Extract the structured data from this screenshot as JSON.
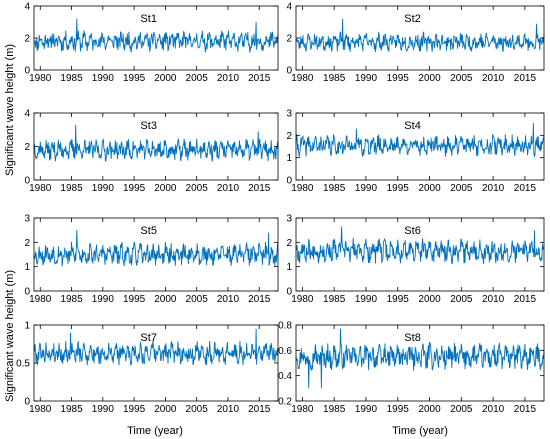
{
  "figure": {
    "ylabel_top": "Significant wave height (m)",
    "ylabel_bottom": "Significant wave height (m)",
    "xlabel_left": "Time (year)",
    "xlabel_right": "Time (year)",
    "line_color": "#0072BD"
  },
  "chart_data": [
    {
      "type": "line",
      "title": "St1",
      "xlim": [
        1979,
        2018
      ],
      "ylim": [
        0,
        4
      ],
      "yticks": [
        0,
        2,
        4
      ],
      "xticks": [
        1980,
        1985,
        1990,
        1995,
        2000,
        2005,
        2010,
        2015
      ],
      "series": [
        {
          "mean": 1.8,
          "amp": 0.55,
          "spikes": [
            [
              1985.8,
              3.2
            ],
            [
              2014.5,
              3.0
            ]
          ],
          "seed": 11
        }
      ]
    },
    {
      "type": "line",
      "title": "St2",
      "xlim": [
        1979,
        2018
      ],
      "ylim": [
        0,
        4
      ],
      "yticks": [
        0,
        2,
        4
      ],
      "xticks": [
        1980,
        1985,
        1990,
        1995,
        2000,
        2005,
        2010,
        2015
      ],
      "series": [
        {
          "mean": 1.75,
          "amp": 0.5,
          "spikes": [
            [
              1986.3,
              3.2
            ],
            [
              2016.8,
              2.9
            ]
          ],
          "seed": 23
        }
      ]
    },
    {
      "type": "line",
      "title": "St3",
      "xlim": [
        1979,
        2018
      ],
      "ylim": [
        0,
        4
      ],
      "yticks": [
        0,
        2,
        4
      ],
      "xticks": [
        1980,
        1985,
        1990,
        1995,
        2000,
        2005,
        2010,
        2015
      ],
      "series": [
        {
          "mean": 1.8,
          "amp": 0.55,
          "spikes": [
            [
              1985.7,
              3.3
            ],
            [
              2014.8,
              2.9
            ]
          ],
          "seed": 37
        }
      ]
    },
    {
      "type": "line",
      "title": "St4",
      "xlim": [
        1979,
        2018
      ],
      "ylim": [
        0,
        3
      ],
      "yticks": [
        0,
        1,
        2,
        3
      ],
      "xticks": [
        1980,
        1985,
        1990,
        1995,
        2000,
        2005,
        2010,
        2015
      ],
      "series": [
        {
          "mean": 1.55,
          "amp": 0.4,
          "spikes": [
            [
              2016.3,
              2.55
            ],
            [
              1988.5,
              2.3
            ]
          ],
          "seed": 41
        }
      ]
    },
    {
      "type": "line",
      "title": "St5",
      "xlim": [
        1979,
        2018
      ],
      "ylim": [
        0,
        3
      ],
      "yticks": [
        0,
        1,
        2,
        3
      ],
      "xticks": [
        1980,
        1985,
        1990,
        1995,
        2000,
        2005,
        2010,
        2015
      ],
      "series": [
        {
          "mean": 1.5,
          "amp": 0.4,
          "spikes": [
            [
              1985.8,
              2.5
            ],
            [
              2016.5,
              2.4
            ]
          ],
          "seed": 53
        }
      ]
    },
    {
      "type": "line",
      "title": "St6",
      "xlim": [
        1979,
        2018
      ],
      "ylim": [
        0,
        3
      ],
      "yticks": [
        0,
        1,
        2,
        3
      ],
      "xticks": [
        1980,
        1985,
        1990,
        1995,
        2000,
        2005,
        2010,
        2015
      ],
      "series": [
        {
          "mean": 1.65,
          "amp": 0.42,
          "spikes": [
            [
              1986.2,
              2.65
            ],
            [
              2016.5,
              2.5
            ]
          ],
          "seed": 67
        }
      ]
    },
    {
      "type": "line",
      "title": "St7",
      "xlim": [
        1979,
        2018
      ],
      "ylim": [
        0,
        1
      ],
      "yticks": [
        0,
        0.5,
        1
      ],
      "xticks": [
        1980,
        1985,
        1990,
        1995,
        2000,
        2005,
        2010,
        2015
      ],
      "series": [
        {
          "mean": 0.63,
          "amp": 0.13,
          "spikes": [
            [
              1984.8,
              0.9
            ],
            [
              2014.5,
              0.95
            ]
          ],
          "seed": 79
        }
      ]
    },
    {
      "type": "line",
      "title": "St8",
      "xlim": [
        1979,
        2018
      ],
      "ylim": [
        0.2,
        0.8
      ],
      "yticks": [
        0.2,
        0.4,
        0.6,
        0.8
      ],
      "xticks": [
        1980,
        1985,
        1990,
        1995,
        2000,
        2005,
        2010,
        2015
      ],
      "series": [
        {
          "mean": 0.55,
          "amp": 0.09,
          "spikes": [
            [
              1986.0,
              0.77
            ],
            [
              1983.0,
              0.3
            ],
            [
              1981.0,
              0.3
            ]
          ],
          "seed": 97
        }
      ]
    }
  ]
}
